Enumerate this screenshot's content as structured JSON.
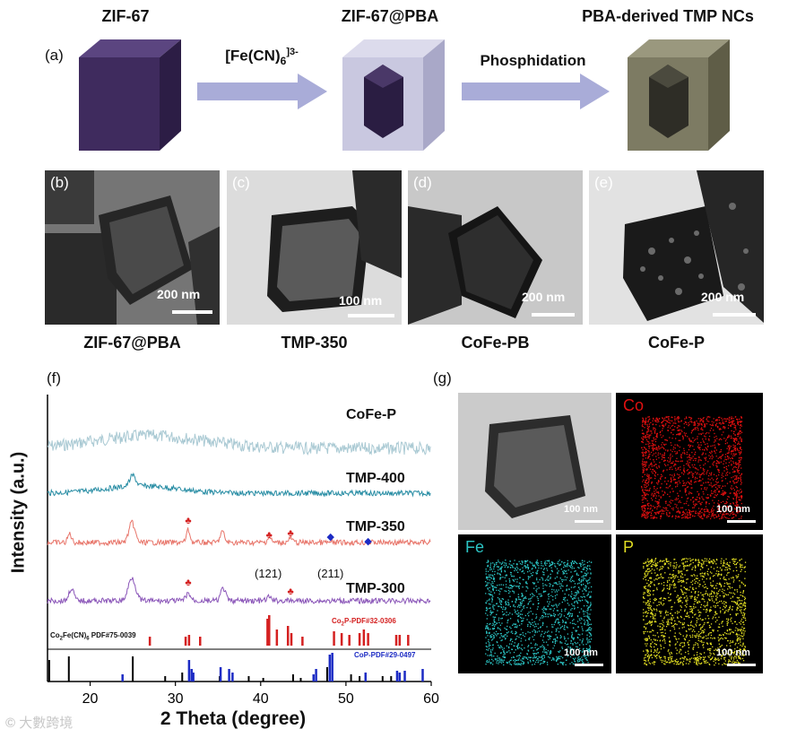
{
  "schematic": {
    "panel_letter": "(a)",
    "titles": {
      "zif67": "ZIF-67",
      "zif67_pba": "ZIF-67@PBA",
      "tmp": "PBA-derived TMP NCs"
    },
    "arrow1_label_main": "[Fe(CN)",
    "arrow1_label_sub": "6",
    "arrow1_label_sup": "]3-",
    "arrow2_label": "Phosphidation",
    "colors": {
      "zif_cube": "#3f2b5e",
      "pba_shell": "#c9c8e0",
      "tmp_shell": "#7d7b63",
      "arrow": "#a9acd8"
    }
  },
  "tem_panels": [
    {
      "letter": "(b)",
      "scale": "200 nm",
      "caption": "ZIF-67@PBA"
    },
    {
      "letter": "(c)",
      "scale": "100 nm",
      "caption": "TMP-350"
    },
    {
      "letter": "(d)",
      "scale": "200 nm",
      "caption": "CoFe-PB"
    },
    {
      "letter": "(e)",
      "scale": "200 nm",
      "caption": "CoFe-P"
    }
  ],
  "xrd": {
    "panel_letter": "(f)",
    "chart_data": {
      "type": "line",
      "xlabel": "2 Theta (degree)",
      "ylabel": "Intensity (a.u.)",
      "xlim": [
        15,
        60
      ],
      "xticks": [
        20,
        30,
        40,
        50,
        60
      ],
      "series": [
        {
          "name": "CoFe-P",
          "color": "#a9c9d3"
        },
        {
          "name": "TMP-400",
          "color": "#2a8ea5"
        },
        {
          "name": "TMP-350",
          "color": "#e8756a"
        },
        {
          "name": "TMP-300",
          "color": "#8a55b8"
        }
      ],
      "annotations": [
        "(121)",
        "(211)"
      ],
      "references": [
        {
          "label": "Co2Fe(CN)6 PDF#75-0039",
          "color": "#000000",
          "peaks": [
            15.2,
            17.5,
            25.0,
            28.8,
            30.8,
            35.2,
            38.6,
            40.3,
            43.8,
            44.7,
            47.8,
            50.6,
            51.6,
            54.3,
            55.3
          ]
        },
        {
          "label": "Co2P-PDF#32-0306",
          "color": "#d42020",
          "peaks": [
            27.0,
            31.2,
            31.6,
            32.9,
            40.8,
            41.0,
            41.9,
            43.2,
            43.6,
            44.9,
            48.6,
            49.5,
            50.4,
            51.6,
            52.1,
            52.6,
            55.9,
            56.3,
            57.3
          ]
        },
        {
          "label": "CoP-PDF#29-0497",
          "color": "#1c2bc4",
          "peaks": [
            23.8,
            31.6,
            31.9,
            32.1,
            35.3,
            36.3,
            36.7,
            46.2,
            46.5,
            48.1,
            48.4,
            52.3,
            56.0,
            56.3,
            56.9,
            59.0
          ]
        }
      ]
    }
  },
  "eds": {
    "panel_letter": "(g)",
    "maps": [
      {
        "label": "",
        "scale": "100 nm"
      },
      {
        "label": "Co",
        "scale": "100 nm",
        "color": "#e01010"
      },
      {
        "label": "Fe",
        "scale": "100 nm",
        "color": "#2bc4c4"
      },
      {
        "label": "P",
        "scale": "100 nm",
        "color": "#e0dc22"
      }
    ]
  },
  "watermark": "大數跨境"
}
